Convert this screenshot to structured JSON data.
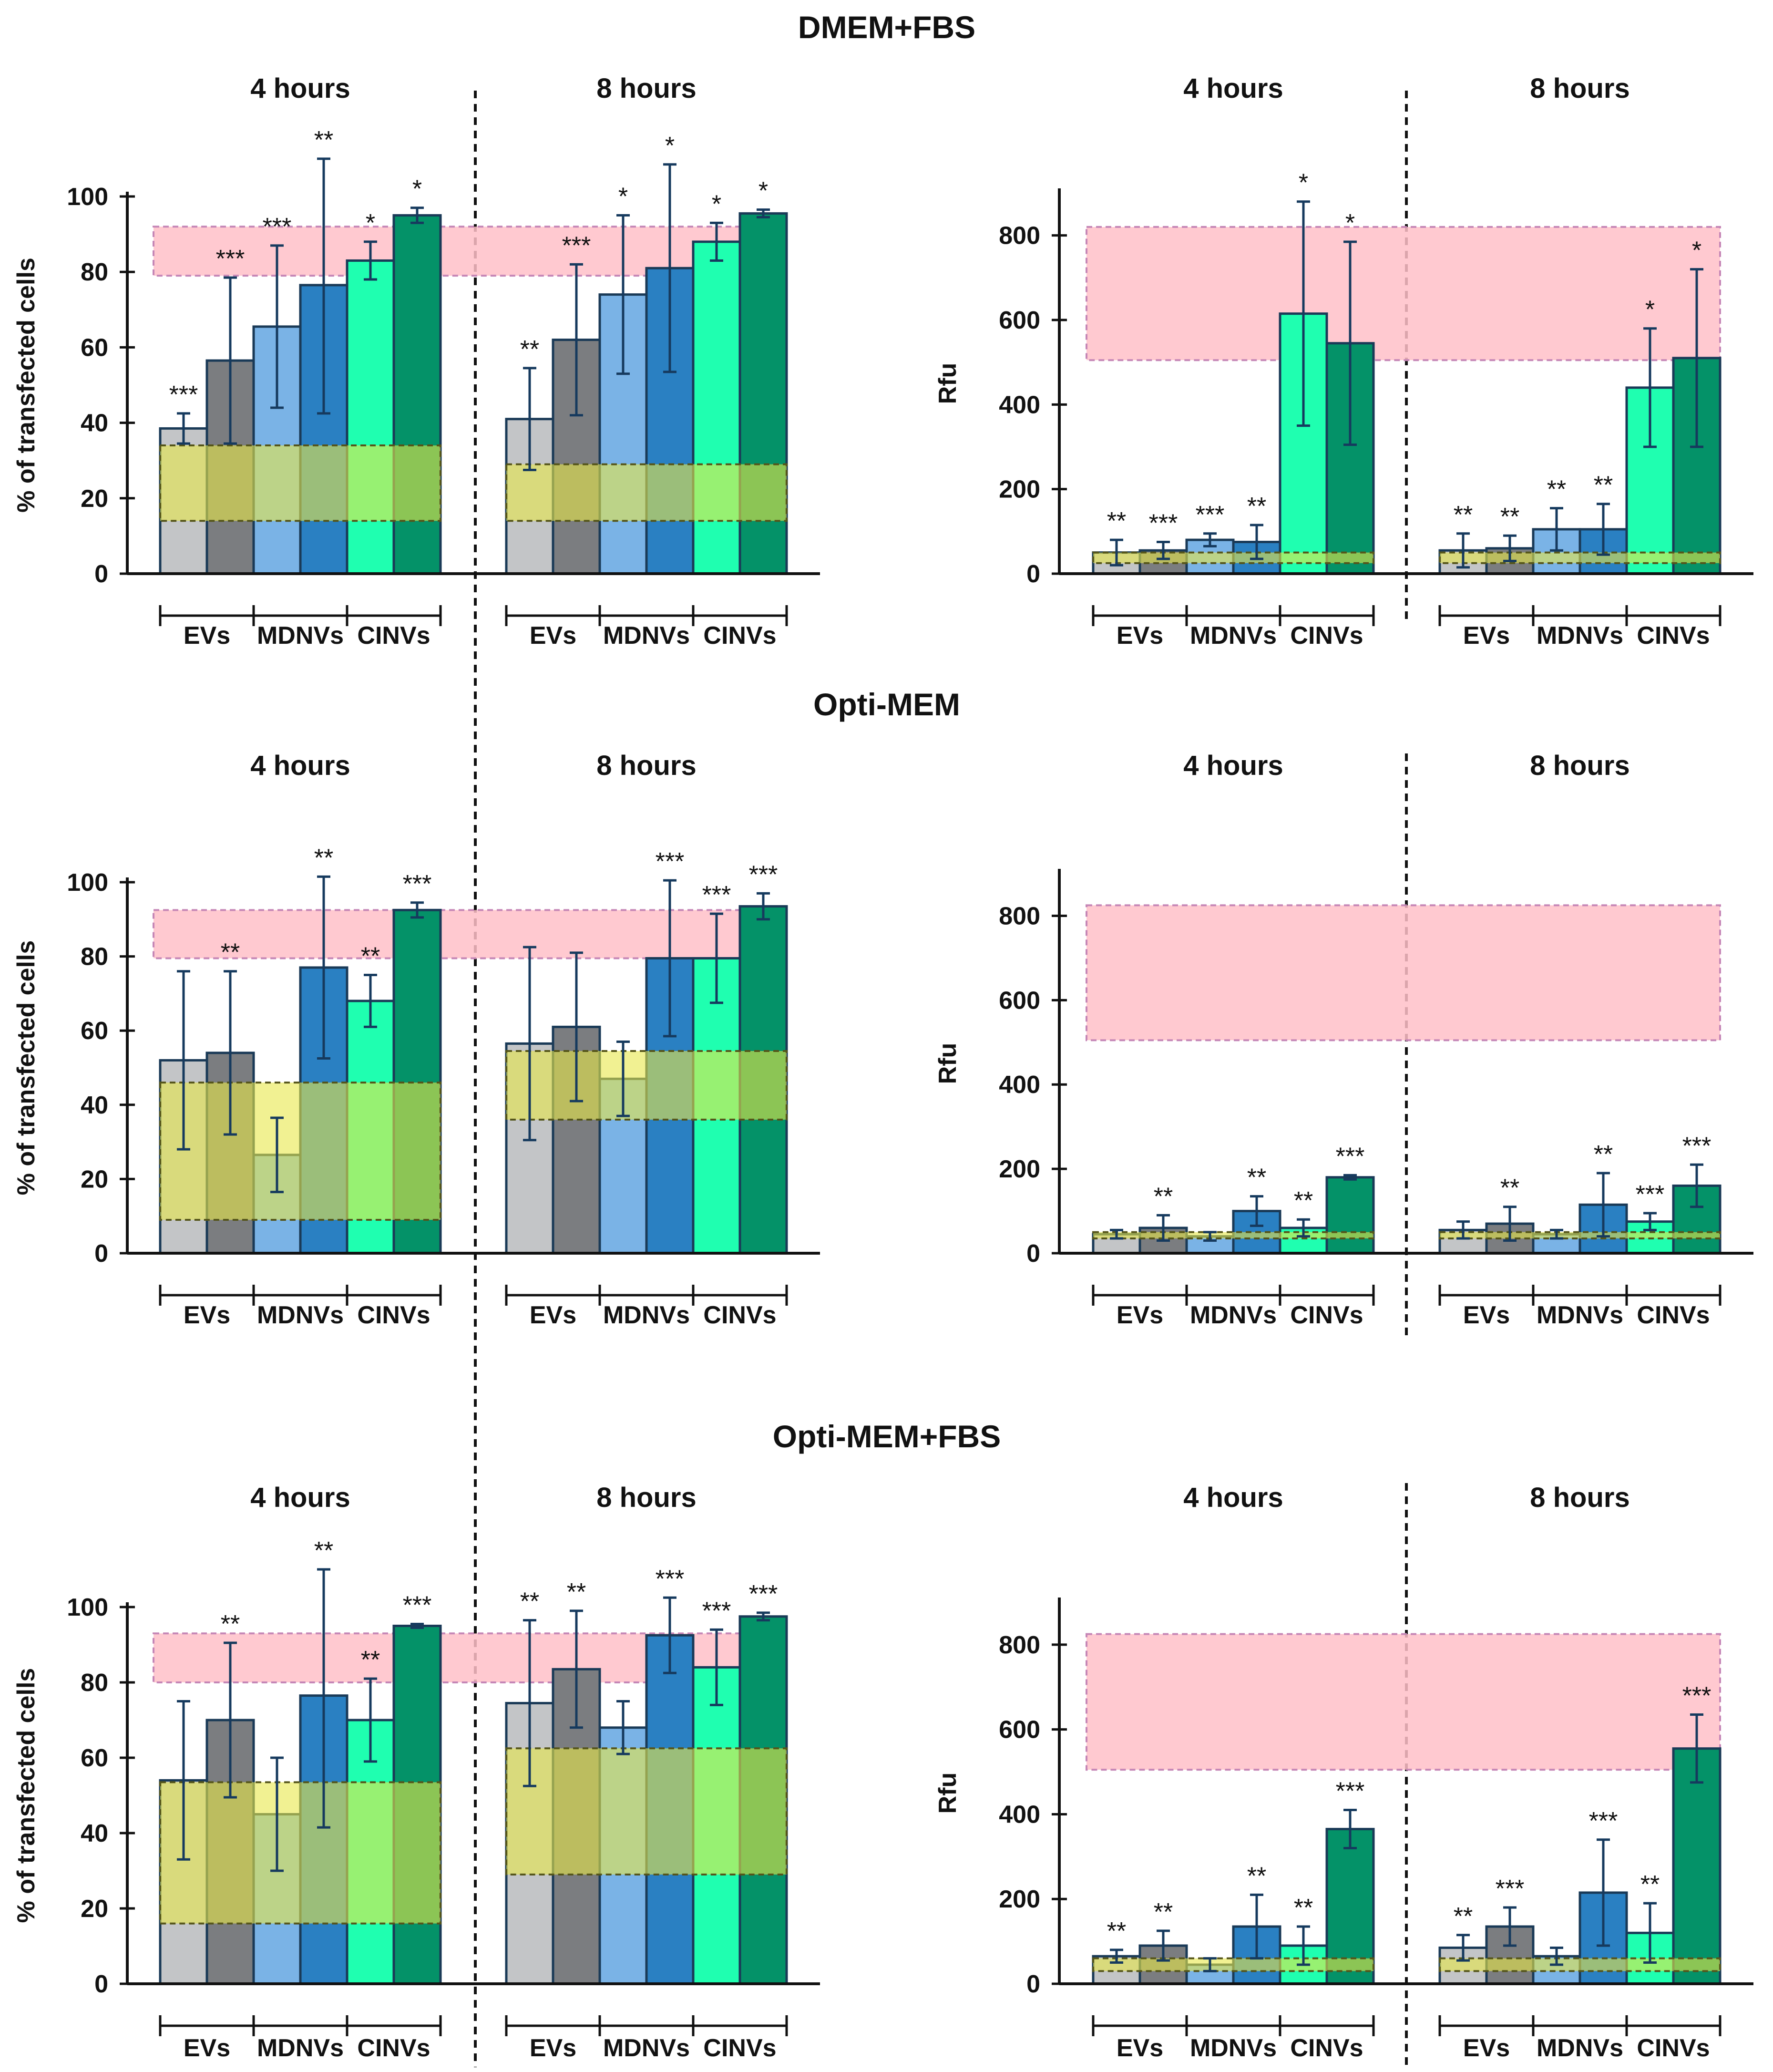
{
  "figure": {
    "sections": [
      "DMEM+FBS",
      "Opti-MEM",
      "Opti-MEM+FBS"
    ],
    "period_labels": [
      "4 hours",
      "8 hours"
    ],
    "group_labels": [
      "EVs",
      "MDNVs",
      "CINVs"
    ],
    "y_labels": {
      "percent": "% of transfected cells",
      "rfu": "Rfu"
    }
  },
  "colors": {
    "bars": [
      "#c3c5c7",
      "#7b7d80",
      "#7ab3e6",
      "#2a80c2",
      "#1fffb0",
      "#049268"
    ],
    "bar_edge": "#1a3a57",
    "pink_band": "#ffc0c8",
    "yellow_band": "#e8e84a",
    "axis": "#111111"
  },
  "chart_data": [
    {
      "id": "dmem-percent",
      "type": "bar",
      "section": "DMEM+FBS",
      "metric": "% of transfected cells",
      "ylim": [
        0,
        100
      ],
      "yticks": [
        0,
        20,
        40,
        60,
        80,
        100
      ],
      "periods": [
        "4 hours",
        "8 hours"
      ],
      "groups": [
        "EVs",
        "MDNVs",
        "CINVs"
      ],
      "bands": {
        "pink": [
          79,
          92
        ],
        "yellow": [
          [
            14,
            34
          ],
          [
            14,
            29
          ]
        ]
      },
      "series": [
        {
          "period": "4 hours",
          "values": [
            38.5,
            56.5,
            65.5,
            76.5,
            83,
            95
          ],
          "errors": [
            4,
            22,
            21.5,
            34,
            5,
            2
          ],
          "sig": [
            "***",
            "***",
            "***",
            "**",
            "*",
            "*"
          ]
        },
        {
          "period": "8 hours",
          "values": [
            41,
            62,
            74,
            81,
            88,
            95.5
          ],
          "errors": [
            13.5,
            20,
            21,
            27.5,
            5,
            1
          ],
          "sig": [
            "**",
            "***",
            "*",
            "*",
            "*",
            "*"
          ]
        }
      ]
    },
    {
      "id": "dmem-rfu",
      "type": "bar",
      "section": "DMEM+FBS",
      "metric": "Rfu",
      "ylim": [
        0,
        900
      ],
      "yticks": [
        0,
        200,
        400,
        600,
        800
      ],
      "periods": [
        "4 hours",
        "8 hours"
      ],
      "groups": [
        "EVs",
        "MDNVs",
        "CINVs"
      ],
      "bands": {
        "pink": [
          505,
          820
        ],
        "yellow": [
          [
            25,
            50
          ],
          [
            25,
            50
          ]
        ]
      },
      "series": [
        {
          "period": "4 hours",
          "values": [
            50,
            55,
            80,
            75,
            615,
            545
          ],
          "errors": [
            30,
            20,
            15,
            40,
            265,
            240
          ],
          "sig": [
            "**",
            "***",
            "***",
            "**",
            "*",
            "*"
          ]
        },
        {
          "period": "8 hours",
          "values": [
            55,
            60,
            105,
            105,
            440,
            510
          ],
          "errors": [
            40,
            30,
            50,
            60,
            140,
            210
          ],
          "sig": [
            "**",
            "**",
            "**",
            "**",
            "*",
            "*"
          ]
        }
      ]
    },
    {
      "id": "optimem-percent",
      "type": "bar",
      "section": "Opti-MEM",
      "metric": "% of transfected cells",
      "ylim": [
        0,
        100
      ],
      "yticks": [
        0,
        20,
        40,
        60,
        80,
        100
      ],
      "periods": [
        "4 hours",
        "8 hours"
      ],
      "groups": [
        "EVs",
        "MDNVs",
        "CINVs"
      ],
      "bands": {
        "pink": [
          79.5,
          92.5
        ],
        "yellow": [
          [
            9,
            46
          ],
          [
            36,
            54.5
          ]
        ]
      },
      "series": [
        {
          "period": "4 hours",
          "values": [
            52,
            54,
            26.5,
            77,
            68,
            92.5
          ],
          "errors": [
            24,
            22,
            10,
            24.5,
            7,
            2
          ],
          "sig": [
            "",
            "**",
            "",
            "**",
            "**",
            "***"
          ]
        },
        {
          "period": "8 hours",
          "values": [
            56.5,
            61,
            47,
            79.5,
            79.5,
            93.5
          ],
          "errors": [
            26,
            20,
            10,
            21,
            12,
            3.5
          ],
          "sig": [
            "",
            "",
            "",
            "***",
            "***",
            "***"
          ]
        }
      ]
    },
    {
      "id": "optimem-rfu",
      "type": "bar",
      "section": "Opti-MEM",
      "metric": "Rfu",
      "ylim": [
        0,
        900
      ],
      "yticks": [
        0,
        200,
        400,
        600,
        800
      ],
      "periods": [
        "4 hours",
        "8 hours"
      ],
      "groups": [
        "EVs",
        "MDNVs",
        "CINVs"
      ],
      "bands": {
        "pink": [
          505,
          825
        ],
        "yellow": [
          [
            35,
            50
          ],
          [
            35,
            50
          ]
        ]
      },
      "series": [
        {
          "period": "4 hours",
          "values": [
            45,
            60,
            40,
            100,
            60,
            180
          ],
          "errors": [
            10,
            30,
            10,
            35,
            20,
            5
          ],
          "sig": [
            "",
            "**",
            "",
            "**",
            "**",
            "***"
          ]
        },
        {
          "period": "8 hours",
          "values": [
            55,
            70,
            45,
            115,
            75,
            160
          ],
          "errors": [
            20,
            40,
            10,
            75,
            20,
            50
          ],
          "sig": [
            "",
            "**",
            "",
            "**",
            "***",
            "***"
          ]
        }
      ]
    },
    {
      "id": "optimemfbs-percent",
      "type": "bar",
      "section": "Opti-MEM+FBS",
      "metric": "% of transfected cells",
      "ylim": [
        0,
        100
      ],
      "yticks": [
        0,
        20,
        40,
        60,
        80,
        100
      ],
      "periods": [
        "4 hours",
        "8 hours"
      ],
      "groups": [
        "EVs",
        "MDNVs",
        "CINVs"
      ],
      "bands": {
        "pink": [
          80,
          93
        ],
        "yellow": [
          [
            16,
            53.5
          ],
          [
            29,
            62.5
          ]
        ]
      },
      "series": [
        {
          "period": "4 hours",
          "values": [
            54,
            70,
            45,
            76.5,
            70,
            95
          ],
          "errors": [
            21,
            20.5,
            15,
            35,
            11,
            0.5
          ],
          "sig": [
            "",
            "**",
            "",
            "**",
            "**",
            "***"
          ]
        },
        {
          "period": "8 hours",
          "values": [
            74.5,
            83.5,
            68,
            92.5,
            84,
            97.5
          ],
          "errors": [
            22,
            15.5,
            7,
            10,
            10,
            1
          ],
          "sig": [
            "**",
            "**",
            "",
            "***",
            "***",
            "***"
          ]
        }
      ]
    },
    {
      "id": "optimemfbs-rfu",
      "type": "bar",
      "section": "Opti-MEM+FBS",
      "metric": "Rfu",
      "ylim": [
        0,
        900
      ],
      "yticks": [
        0,
        200,
        400,
        600,
        800
      ],
      "periods": [
        "4 hours",
        "8 hours"
      ],
      "groups": [
        "EVs",
        "MDNVs",
        "CINVs"
      ],
      "bands": {
        "pink": [
          505,
          825
        ],
        "yellow": [
          [
            30,
            60
          ],
          [
            30,
            60
          ]
        ]
      },
      "series": [
        {
          "period": "4 hours",
          "values": [
            65,
            90,
            45,
            135,
            90,
            365
          ],
          "errors": [
            15,
            35,
            15,
            75,
            45,
            45
          ],
          "sig": [
            "**",
            "**",
            "",
            "**",
            "**",
            "***"
          ]
        },
        {
          "period": "8 hours",
          "values": [
            85,
            135,
            65,
            215,
            120,
            555
          ],
          "errors": [
            30,
            45,
            20,
            125,
            70,
            80
          ],
          "sig": [
            "**",
            "***",
            "",
            "***",
            "**",
            "***"
          ]
        }
      ]
    }
  ]
}
